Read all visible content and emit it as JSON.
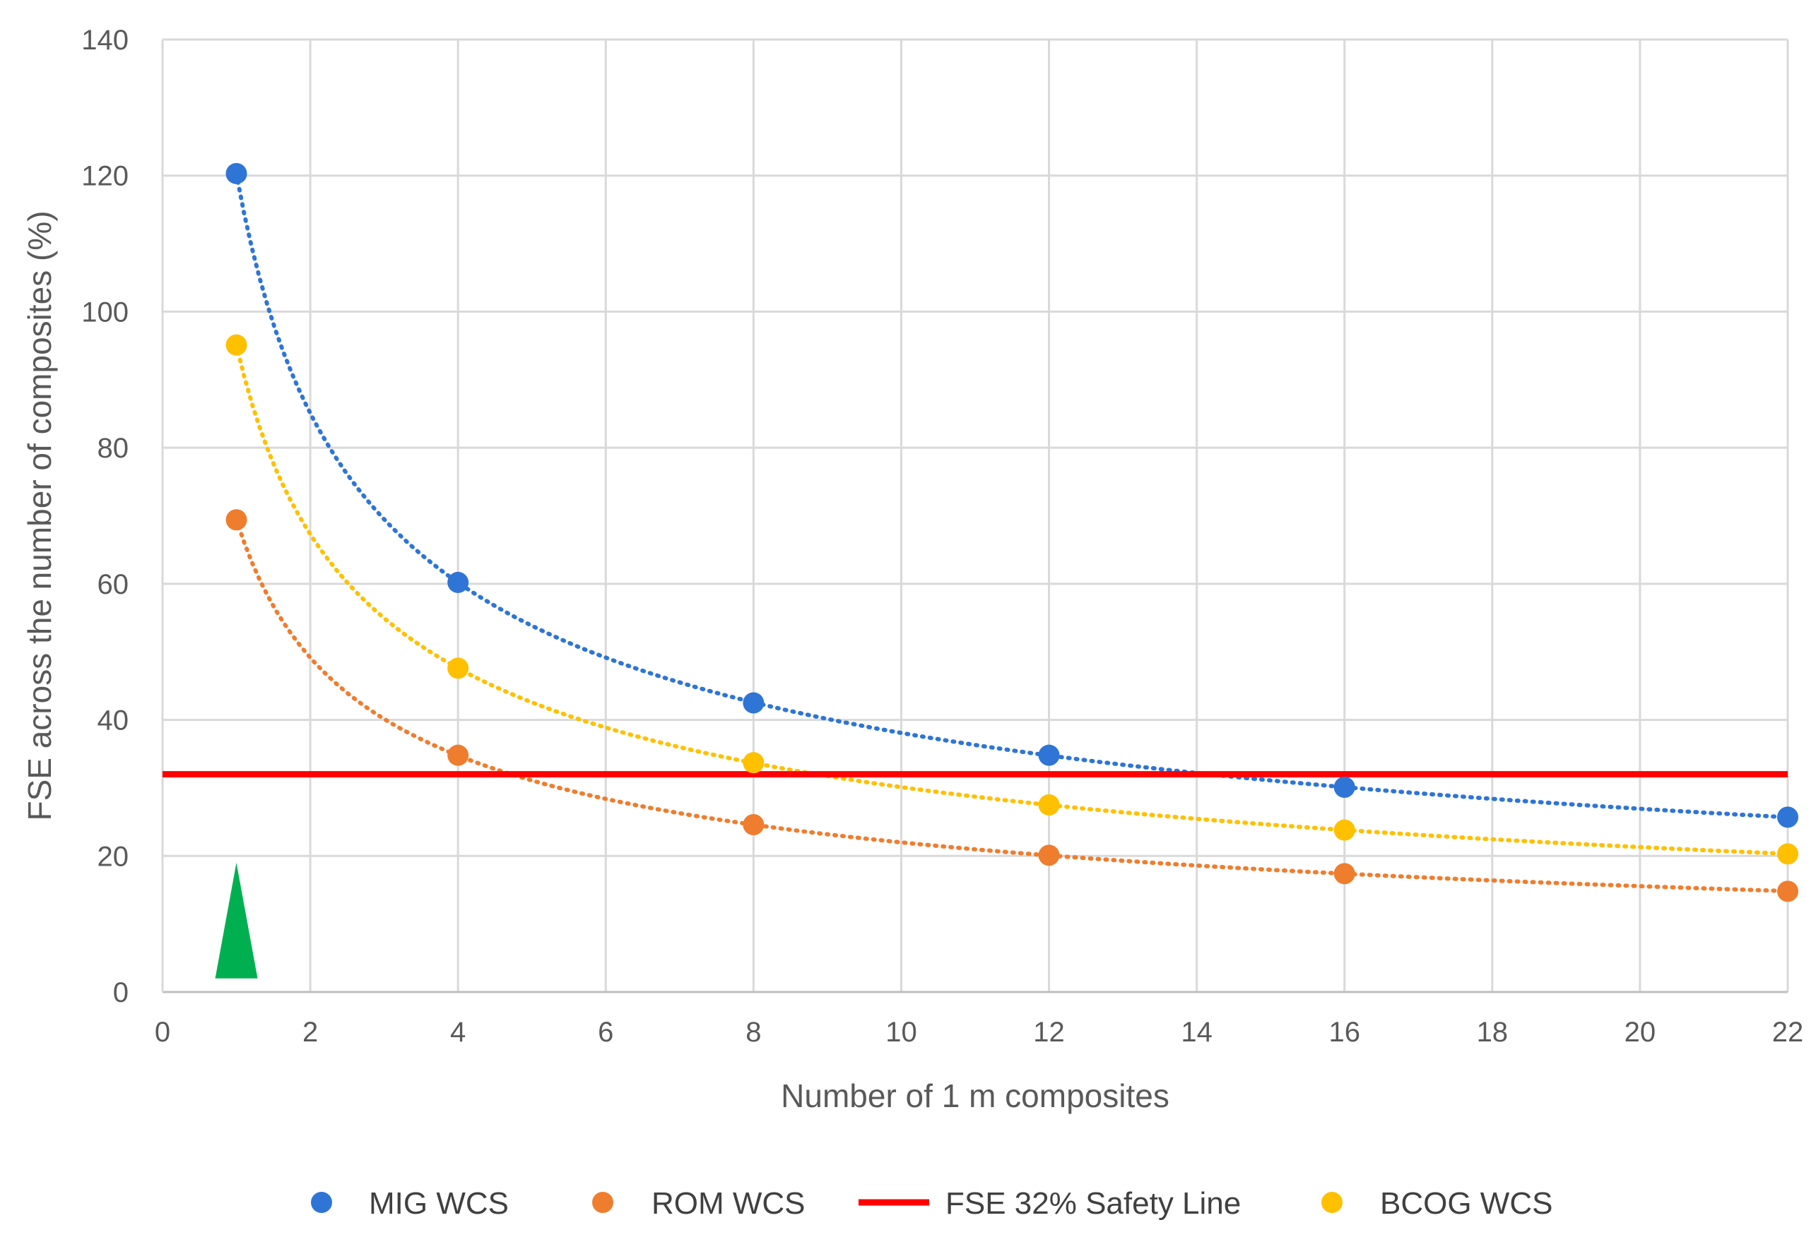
{
  "chart_data": {
    "type": "scatter",
    "title": "",
    "xlabel": "Number of 1 m composites",
    "ylabel": "FSE across the number of composites (%)",
    "xlim": [
      0,
      22
    ],
    "ylim": [
      0,
      140
    ],
    "xticks": [
      0,
      2,
      4,
      6,
      8,
      10,
      12,
      14,
      16,
      18,
      20,
      22
    ],
    "yticks": [
      0,
      20,
      40,
      60,
      80,
      100,
      120,
      140
    ],
    "grid": true,
    "legend_position": "bottom",
    "x": [
      1,
      4,
      8,
      12,
      16,
      22
    ],
    "series": [
      {
        "name": "MIG WCS",
        "color": "#2e75d6",
        "values": [
          120.3,
          60.2,
          42.5,
          34.8,
          30.1,
          25.7
        ],
        "trendline": "power"
      },
      {
        "name": "ROM WCS",
        "color": "#ef7d2e",
        "values": [
          69.4,
          34.8,
          24.6,
          20.1,
          17.4,
          14.8
        ],
        "trendline": "power"
      },
      {
        "name": "BCOG WCS",
        "color": "#ffc000",
        "values": [
          95.1,
          47.6,
          33.7,
          27.5,
          23.8,
          20.3
        ],
        "trendline": "power"
      }
    ],
    "reference_line": {
      "name": "FSE 32% Safety Line",
      "y": 32,
      "color": "#ff0000"
    },
    "marker": {
      "name": "green-triangle-marker",
      "x": 1,
      "y_base": 2,
      "y_top": 19,
      "color": "#00b050"
    },
    "legend_order": [
      "MIG WCS",
      "ROM WCS",
      "FSE 32% Safety Line",
      "BCOG WCS"
    ]
  }
}
